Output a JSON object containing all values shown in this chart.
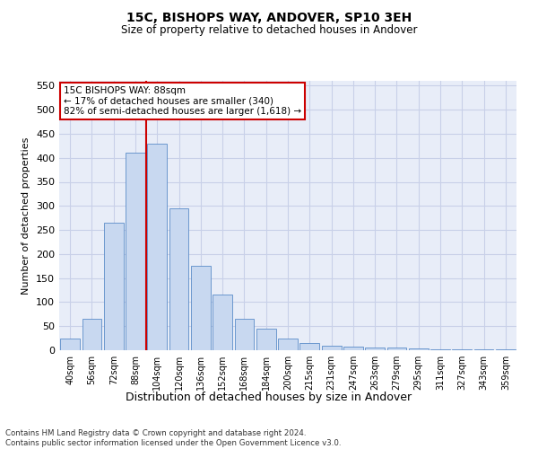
{
  "title1": "15C, BISHOPS WAY, ANDOVER, SP10 3EH",
  "title2": "Size of property relative to detached houses in Andover",
  "xlabel": "Distribution of detached houses by size in Andover",
  "ylabel": "Number of detached properties",
  "categories": [
    "40sqm",
    "56sqm",
    "72sqm",
    "88sqm",
    "104sqm",
    "120sqm",
    "136sqm",
    "152sqm",
    "168sqm",
    "184sqm",
    "200sqm",
    "215sqm",
    "231sqm",
    "247sqm",
    "263sqm",
    "279sqm",
    "295sqm",
    "311sqm",
    "327sqm",
    "343sqm",
    "359sqm"
  ],
  "values": [
    25,
    65,
    265,
    410,
    430,
    295,
    175,
    115,
    65,
    45,
    25,
    15,
    10,
    8,
    5,
    5,
    3,
    2,
    2,
    1,
    2
  ],
  "bar_color": "#c8d8f0",
  "bar_edge_color": "#5b8cc8",
  "vline_color": "#cc0000",
  "vline_x": 3.5,
  "annotation_text": "15C BISHOPS WAY: 88sqm\n← 17% of detached houses are smaller (340)\n82% of semi-detached houses are larger (1,618) →",
  "annotation_box_color": "#ffffff",
  "annotation_box_edge": "#cc0000",
  "grid_color": "#c8d0e8",
  "background_color": "#e8edf8",
  "ylim": [
    0,
    560
  ],
  "yticks": [
    0,
    50,
    100,
    150,
    200,
    250,
    300,
    350,
    400,
    450,
    500,
    550
  ],
  "footnote": "Contains HM Land Registry data © Crown copyright and database right 2024.\nContains public sector information licensed under the Open Government Licence v3.0."
}
